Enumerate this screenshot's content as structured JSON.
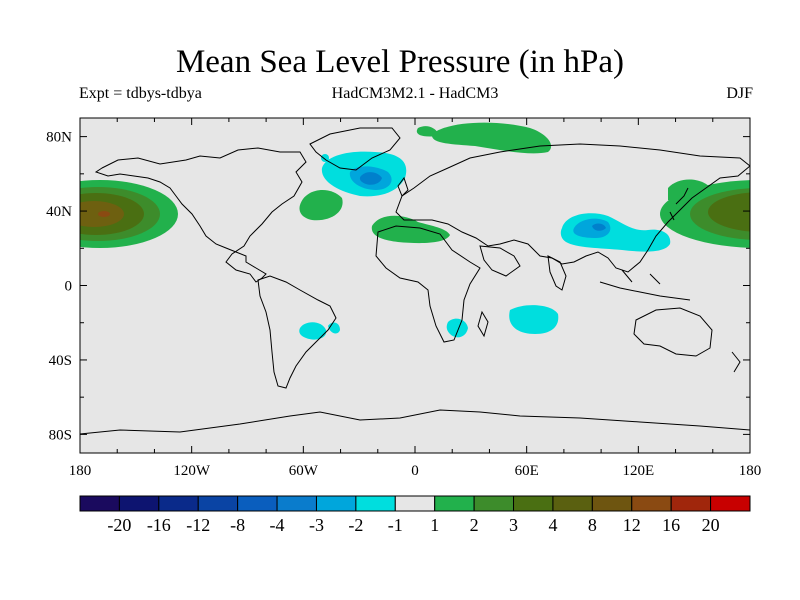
{
  "title": "Mean Sea Level Pressure (in hPa)",
  "subtitle_left": "Expt = tdbys-tdbya",
  "subtitle_center": "HadCM3M2.1 - HadCM3",
  "subtitle_right": "DJF",
  "colors": {
    "ocean": "#e6e6e6",
    "coast": "#000000",
    "green_1_2": "#22b14c",
    "green_2_3": "#3d8c2b",
    "green_3_4": "#4a6f12",
    "brown_4_8": "#6e6010",
    "brown_8_12": "#8a4a12",
    "cyan_m2_m1": "#00dede",
    "blue_m3_m2": "#00a6dc",
    "blue_m4_m3": "#0080cc"
  },
  "chart_data": {
    "type": "heatmap",
    "title": "Mean Sea Level Pressure (in hPa)",
    "projection": "cylindrical equidistant",
    "xlim": [
      -180,
      180
    ],
    "ylim": [
      -90,
      90
    ],
    "x_ticks": [
      {
        "value": -180,
        "label": "180"
      },
      {
        "value": -120,
        "label": "120W"
      },
      {
        "value": -60,
        "label": "60W"
      },
      {
        "value": 0,
        "label": "0"
      },
      {
        "value": 60,
        "label": "60E"
      },
      {
        "value": 120,
        "label": "120E"
      },
      {
        "value": 180,
        "label": "180"
      }
    ],
    "y_ticks": [
      {
        "value": 80,
        "label": "80N"
      },
      {
        "value": 40,
        "label": "40N"
      },
      {
        "value": 0,
        "label": "0"
      },
      {
        "value": -40,
        "label": "40S"
      },
      {
        "value": -80,
        "label": "80S"
      }
    ],
    "colorbar": {
      "labels": [
        "-20",
        "-16",
        "-12",
        "-8",
        "-4",
        "-3",
        "-2",
        "-1",
        "1",
        "2",
        "3",
        "4",
        "8",
        "12",
        "16",
        "20"
      ],
      "colors": [
        "#1a0a5e",
        "#0d1470",
        "#0a2a8a",
        "#0a44a4",
        "#0a5ebe",
        "#0a7ccc",
        "#00a6dc",
        "#00dede",
        "#e6e6e6",
        "#22b14c",
        "#3d8c2b",
        "#4a6f12",
        "#5a6010",
        "#6e5510",
        "#8a4a12",
        "#a0260c",
        "#c80000"
      ]
    }
  }
}
